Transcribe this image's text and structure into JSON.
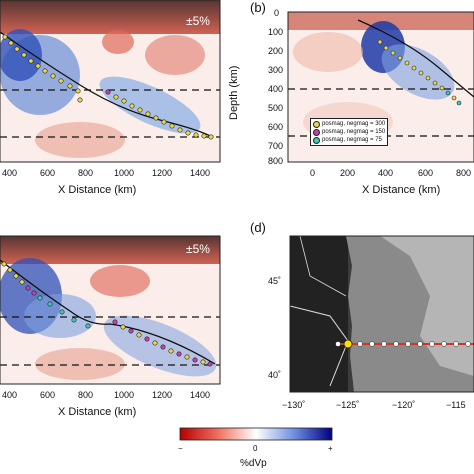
{
  "panels": {
    "a": {
      "scale_label": "±5%",
      "xlabel": "X Distance (km)",
      "xticks": [
        "400",
        "600",
        "800",
        "1000",
        "1200",
        "1400"
      ]
    },
    "b": {
      "label": "(b)",
      "ylabel": "Depth (km)",
      "xlabel": "X Distance (km)",
      "yticks": [
        "0",
        "100",
        "200",
        "300",
        "400",
        "500",
        "600",
        "700",
        "800"
      ],
      "xticks": [
        "0",
        "200",
        "400",
        "600",
        "800"
      ],
      "legend": [
        {
          "text": "posmag, negmag = 300",
          "color": "#e8d84a"
        },
        {
          "text": "posmag, negmag = 150",
          "color": "#c040b0"
        },
        {
          "text": "posmag, negmag = 75",
          "color": "#40c8b8"
        }
      ]
    },
    "c": {
      "scale_label": "±5%",
      "xlabel": "X Distance (km)",
      "xticks": [
        "400",
        "600",
        "800",
        "1000",
        "1200",
        "1400"
      ]
    },
    "d": {
      "label": "(d)",
      "xticks": [
        "−130˚",
        "−125˚",
        "−120˚",
        "−115"
      ],
      "yticks": [
        "45˚",
        "40˚"
      ]
    }
  },
  "colorbar": {
    "label": "%dVp",
    "ticks": [
      "−",
      "0",
      "+"
    ],
    "colors": {
      "neg": "#b40000",
      "mid": "#ffffff",
      "pos": "#000080"
    }
  }
}
